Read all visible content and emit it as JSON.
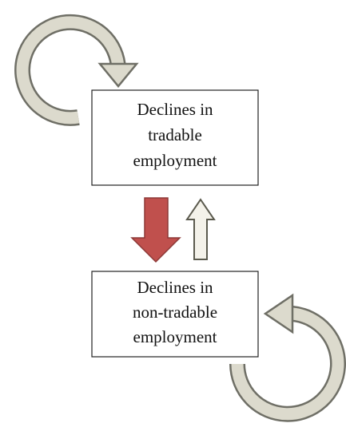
{
  "nodes": [
    {
      "lines": [
        "Declines in",
        "tradable",
        "employment"
      ]
    },
    {
      "lines": [
        "Declines in",
        "non-tradable",
        "employment"
      ]
    }
  ]
}
